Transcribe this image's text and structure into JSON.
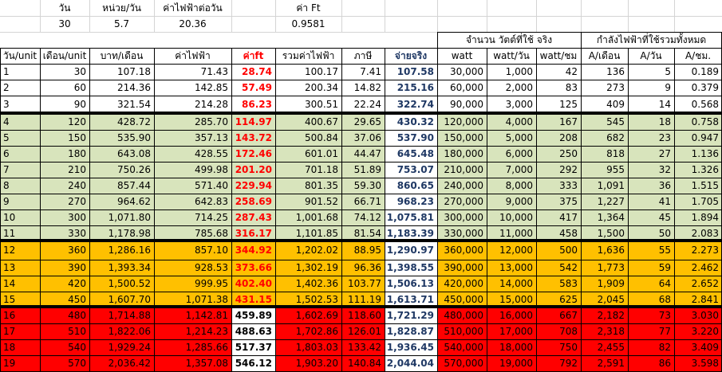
{
  "top_params": {
    "labels": [
      "วัน",
      "หน่วย/วัน",
      "ค่าไฟฟ้าต่อวัน",
      "ค่า Ft"
    ],
    "values": [
      "30",
      "5.7",
      "20.36",
      "0.9581"
    ]
  },
  "group_headers": {
    "watt_group": "จำนวน  วัตต์ที่ใช้  จริง",
    "amp_group": "กำลังไฟฟ้าที่ใช้รวมทั้งหมด"
  },
  "columns": [
    "วัน/unit",
    "เดือน/unit",
    "บาท/เดือน",
    "ค่าไฟฟ้า",
    "ค่าft",
    "รวมค่าไฟฟ้า",
    "ภาษี",
    "จ่ายจริง",
    "watt",
    "watt/วัน",
    "watt/ชม",
    "A/เดือน",
    "A/วัน",
    "A/ชม."
  ],
  "colors": {
    "band_white": "#ffffff",
    "band_green": "#d8e4bc",
    "band_orange": "#ffc000",
    "band_red": "#ff0000",
    "ft_text": "#ff0000",
    "pay_text": "#1f3864"
  },
  "rows": [
    {
      "band": "white",
      "cells": [
        "1",
        "30",
        "107.18",
        "71.43",
        "28.74",
        "100.17",
        "7.41",
        "107.58",
        "30,000",
        "1,000",
        "42",
        "136",
        "5",
        "0.189"
      ]
    },
    {
      "band": "white",
      "cells": [
        "2",
        "60",
        "214.36",
        "142.85",
        "57.49",
        "200.34",
        "14.82",
        "215.16",
        "60,000",
        "2,000",
        "83",
        "273",
        "9",
        "0.379"
      ]
    },
    {
      "band": "white",
      "cells": [
        "3",
        "90",
        "321.54",
        "214.28",
        "86.23",
        "300.51",
        "22.24",
        "322.74",
        "90,000",
        "3,000",
        "125",
        "409",
        "14",
        "0.568"
      ]
    },
    {
      "band": "green",
      "cells": [
        "4",
        "120",
        "428.72",
        "285.70",
        "114.97",
        "400.67",
        "29.65",
        "430.32",
        "120,000",
        "4,000",
        "167",
        "545",
        "18",
        "0.758"
      ]
    },
    {
      "band": "green",
      "cells": [
        "5",
        "150",
        "535.90",
        "357.13",
        "143.72",
        "500.84",
        "37.06",
        "537.90",
        "150,000",
        "5,000",
        "208",
        "682",
        "23",
        "0.947"
      ]
    },
    {
      "band": "green",
      "cells": [
        "6",
        "180",
        "643.08",
        "428.55",
        "172.46",
        "601.01",
        "44.47",
        "645.48",
        "180,000",
        "6,000",
        "250",
        "818",
        "27",
        "1.136"
      ]
    },
    {
      "band": "green",
      "cells": [
        "7",
        "210",
        "750.26",
        "499.98",
        "201.20",
        "701.18",
        "51.89",
        "753.07",
        "210,000",
        "7,000",
        "292",
        "955",
        "32",
        "1.326"
      ]
    },
    {
      "band": "green",
      "cells": [
        "8",
        "240",
        "857.44",
        "571.40",
        "229.94",
        "801.35",
        "59.30",
        "860.65",
        "240,000",
        "8,000",
        "333",
        "1,091",
        "36",
        "1.515"
      ]
    },
    {
      "band": "green",
      "cells": [
        "9",
        "270",
        "964.62",
        "642.83",
        "258.69",
        "901.52",
        "66.71",
        "968.23",
        "270,000",
        "9,000",
        "375",
        "1,227",
        "41",
        "1.705"
      ]
    },
    {
      "band": "green",
      "cells": [
        "10",
        "300",
        "1,071.80",
        "714.25",
        "287.43",
        "1,001.68",
        "74.12",
        "1,075.81",
        "300,000",
        "10,000",
        "417",
        "1,364",
        "45",
        "1.894"
      ]
    },
    {
      "band": "green",
      "cells": [
        "11",
        "330",
        "1,178.98",
        "785.68",
        "316.17",
        "1,101.85",
        "81.54",
        "1,183.39",
        "330,000",
        "11,000",
        "458",
        "1,500",
        "50",
        "2.083"
      ]
    },
    {
      "band": "orange",
      "cells": [
        "12",
        "360",
        "1,286.16",
        "857.10",
        "344.92",
        "1,202.02",
        "88.95",
        "1,290.97",
        "360,000",
        "12,000",
        "500",
        "1,636",
        "55",
        "2.273"
      ]
    },
    {
      "band": "orange",
      "cells": [
        "13",
        "390",
        "1,393.34",
        "928.53",
        "373.66",
        "1,302.19",
        "96.36",
        "1,398.55",
        "390,000",
        "13,000",
        "542",
        "1,773",
        "59",
        "2.462"
      ]
    },
    {
      "band": "orange",
      "cells": [
        "14",
        "420",
        "1,500.52",
        "999.95",
        "402.40",
        "1,402.36",
        "103.77",
        "1,506.13",
        "420,000",
        "14,000",
        "583",
        "1,909",
        "64",
        "2.652"
      ]
    },
    {
      "band": "orange",
      "cells": [
        "15",
        "450",
        "1,607.70",
        "1,071.38",
        "431.15",
        "1,502.53",
        "111.19",
        "1,613.71",
        "450,000",
        "15,000",
        "625",
        "2,045",
        "68",
        "2.841"
      ]
    },
    {
      "band": "red",
      "cells": [
        "16",
        "480",
        "1,714.88",
        "1,142.81",
        "459.89",
        "1,602.69",
        "118.60",
        "1,721.29",
        "480,000",
        "16,000",
        "667",
        "2,182",
        "73",
        "3.030"
      ]
    },
    {
      "band": "red",
      "cells": [
        "17",
        "510",
        "1,822.06",
        "1,214.23",
        "488.63",
        "1,702.86",
        "126.01",
        "1,828.87",
        "510,000",
        "17,000",
        "708",
        "2,318",
        "77",
        "3.220"
      ]
    },
    {
      "band": "red",
      "cells": [
        "18",
        "540",
        "1,929.24",
        "1,285.66",
        "517.37",
        "1,803.03",
        "133.42",
        "1,936.45",
        "540,000",
        "18,000",
        "750",
        "2,455",
        "82",
        "3.409"
      ]
    },
    {
      "band": "red",
      "cells": [
        "19",
        "570",
        "2,036.42",
        "1,357.08",
        "546.12",
        "1,903.20",
        "140.84",
        "2,044.04",
        "570,000",
        "19,000",
        "792",
        "2,591",
        "86",
        "3.598"
      ]
    }
  ]
}
